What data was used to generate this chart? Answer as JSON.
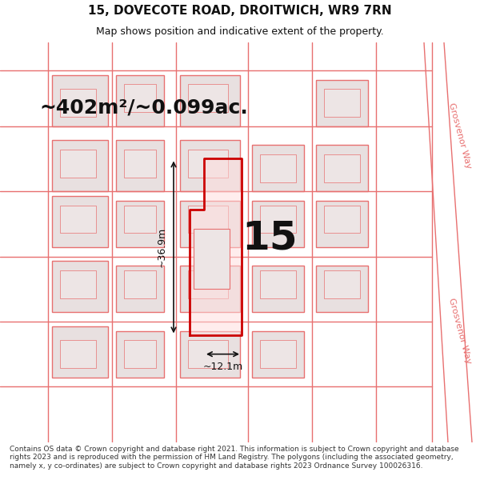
{
  "title": "15, DOVECOTE ROAD, DROITWICH, WR9 7RN",
  "subtitle": "Map shows position and indicative extent of the property.",
  "area_text": "~402m²/~0.099ac.",
  "dim_width": "~12.1m",
  "dim_height": "~36.9m",
  "number": "15",
  "footer": "Contains OS data © Crown copyright and database right 2021. This information is subject to Crown copyright and database rights 2023 and is reproduced with the permission of HM Land Registry. The polygons (including the associated geometry, namely x, y co-ordinates) are subject to Crown copyright and database rights 2023 Ordnance Survey 100026316.",
  "bg_color": "#f5f0f0",
  "map_bg": "#f9f4f4",
  "road_color": "#e87070",
  "plot_color": "#cc0000",
  "block_color": "#e8e0e0",
  "text_color": "#111111",
  "footer_color": "#333333"
}
